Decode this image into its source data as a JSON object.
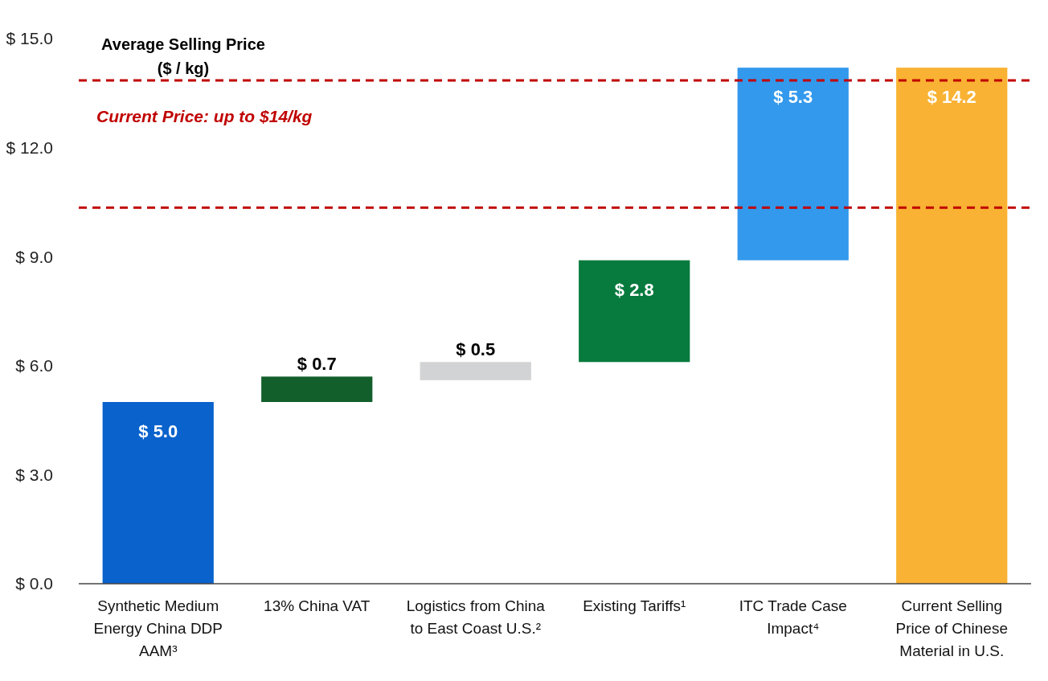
{
  "chart_data": {
    "type": "bar",
    "title": "Average Selling Price\n($ / kg)",
    "categories": [
      "Synthetic Medium Energy China DDP AAM³",
      "13% China VAT",
      "Logistics from China to East Coast U.S.²",
      "Existing Tariffs¹",
      "ITC Trade Case Impact⁴",
      "Current Selling Price of Chinese Material in U.S."
    ],
    "values": [
      5.0,
      0.7,
      0.5,
      2.8,
      5.3,
      14.2
    ],
    "base": [
      0,
      5.0,
      5.6,
      6.1,
      8.9,
      0
    ],
    "colors": [
      "#0a62cc",
      "#135f2c",
      "#d2d3d4",
      "#077a3d",
      "#3399ec",
      "#f9b233"
    ],
    "value_labels": [
      "$ 5.0",
      "$ 0.7",
      "$ 0.5",
      "$ 2.8",
      "$ 5.3",
      "$ 14.2"
    ],
    "ylim": [
      0,
      15
    ],
    "yticks": [
      {
        "value": 0,
        "label": "$ 0.0"
      },
      {
        "value": 3,
        "label": "$ 3.0"
      },
      {
        "value": 6,
        "label": "$ 6.0"
      },
      {
        "value": 9,
        "label": "$ 9.0"
      },
      {
        "value": 12,
        "label": "$ 12.0"
      },
      {
        "value": 15,
        "label": "$ 15.0"
      }
    ],
    "ref_lines": [
      {
        "axis": "y",
        "value": 13.85,
        "color": "#c00000",
        "line_style": "dashed"
      },
      {
        "axis": "y",
        "value": 10.35,
        "color": "#c00000",
        "line_style": "dashed"
      }
    ],
    "annotations": [
      "Current Price: up to $14/kg"
    ],
    "grid": false
  }
}
